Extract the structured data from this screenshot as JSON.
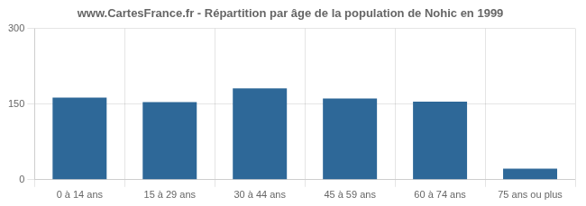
{
  "chart_data": {
    "type": "bar",
    "title": "www.CartesFrance.fr - Répartition par âge de la population de Nohic en 1999",
    "categories": [
      "0 à 14 ans",
      "15 à 29 ans",
      "30 à 44 ans",
      "45 à 59 ans",
      "60 à 74 ans",
      "75 ans ou plus"
    ],
    "values": [
      163,
      154,
      181,
      161,
      155,
      22
    ],
    "color": "#2e6898",
    "ylim": [
      0,
      300
    ],
    "yticks": [
      0,
      150,
      300
    ],
    "grid": true
  }
}
